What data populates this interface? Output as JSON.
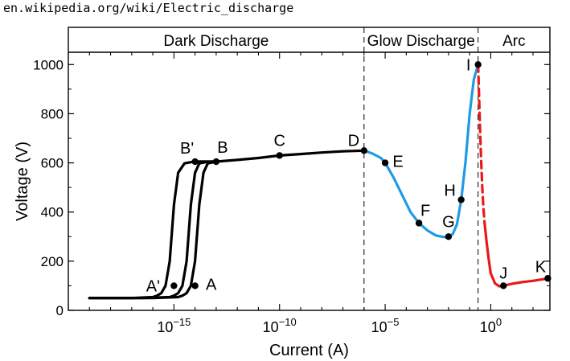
{
  "page": {
    "url": "en.wikipedia.org/wiki/Electric_discharge"
  },
  "colors": {
    "dark": "#000000",
    "glow": "#1f9be6",
    "arc": "#e8191b"
  },
  "chart_data": {
    "type": "line",
    "xscale": "log",
    "xlabel": "Current  (A)",
    "ylabel": "Voltage  (V)",
    "xlim": [
      "1e-20",
      "1e2.8"
    ],
    "ylim": [
      0,
      1050
    ],
    "x_ticks": [
      "10^-15",
      "10^-10",
      "10^-5",
      "10^0"
    ],
    "x_tick_labels": [
      {
        "base": "10",
        "exp": "−15"
      },
      {
        "base": "10",
        "exp": "−10"
      },
      {
        "base": "10",
        "exp": "−5"
      },
      {
        "base": "10",
        "exp": "0"
      }
    ],
    "y_ticks": [
      0,
      200,
      400,
      600,
      800,
      1000
    ],
    "regions": [
      {
        "label": "Dark Discharge",
        "x_range": [
          "1e-20",
          "1e-6"
        ]
      },
      {
        "label": "Glow Discharge",
        "x_range": [
          "1e-6",
          "1e-0.6"
        ]
      },
      {
        "label": "Arc",
        "x_range": [
          "1e-0.6",
          "1e2.8"
        ]
      }
    ],
    "points": [
      {
        "label": "A'",
        "x": "1e-15",
        "y": 100
      },
      {
        "label": "A",
        "x": "1e-14",
        "y": 100
      },
      {
        "label": "B'",
        "x": "1e-14",
        "y": 605
      },
      {
        "label": "B",
        "x": "1e-13",
        "y": 605
      },
      {
        "label": "C",
        "x": "1e-10",
        "y": 630
      },
      {
        "label": "D",
        "x": "1e-6",
        "y": 650
      },
      {
        "label": "E",
        "x": "1e-5",
        "y": 600
      },
      {
        "label": "F",
        "x": "1e-3.4",
        "y": 355
      },
      {
        "label": "G",
        "x": "1e-2",
        "y": 300
      },
      {
        "label": "H",
        "x": "1e-1.4",
        "y": 450
      },
      {
        "label": "I",
        "x": "1e-0.6",
        "y": 1000
      },
      {
        "label": "J",
        "x": "1e0.6",
        "y": 100
      },
      {
        "label": "K",
        "x": "1e2.7",
        "y": 130
      }
    ],
    "series": [
      {
        "type": "dark",
        "style": "solid",
        "x_exp": [
          -19,
          -17,
          -16,
          -15.8,
          -15.6,
          -15.4,
          -15.2,
          -15,
          -14.8,
          -14.5,
          -14.2,
          -14,
          -13.5,
          -13
        ],
        "y": [
          50,
          50,
          54,
          60,
          70,
          100,
          200,
          430,
          560,
          598,
          603,
          605,
          605,
          605
        ]
      },
      {
        "type": "dark",
        "style": "solid",
        "x_exp": [
          -19,
          -16.5,
          -15.2,
          -15,
          -14.8,
          -14.6,
          -14.4,
          -14.2,
          -14,
          -13.8,
          -13.5,
          -13.2,
          -13
        ],
        "y": [
          50,
          50,
          54,
          60,
          70,
          100,
          200,
          430,
          560,
          598,
          603,
          605,
          605
        ]
      },
      {
        "type": "dark",
        "style": "solid",
        "x_exp": [
          -19,
          -16,
          -14.8,
          -14.6,
          -14.4,
          -14.2,
          -14,
          -13.8,
          -13.6,
          -13.4,
          -13.1,
          -13
        ],
        "y": [
          50,
          50,
          54,
          60,
          70,
          100,
          200,
          430,
          560,
          598,
          603,
          605
        ]
      },
      {
        "type": "dark",
        "style": "solid",
        "x_exp": [
          -14,
          -13,
          -12,
          -11,
          -10,
          -9,
          -8,
          -7,
          -6
        ],
        "y": [
          605,
          605,
          612,
          620,
          630,
          636,
          642,
          647,
          650
        ]
      },
      {
        "type": "glow",
        "style": "solid",
        "x_exp": [
          -6,
          -5.6,
          -5.2,
          -5,
          -4.6,
          -4.2,
          -3.8,
          -3.4,
          -3,
          -2.6,
          -2.2,
          -2,
          -1.8,
          -1.6,
          -1.4,
          -1.2,
          -1,
          -0.8,
          -0.6
        ],
        "y": [
          650,
          638,
          620,
          600,
          540,
          470,
          400,
          355,
          325,
          305,
          298,
          300,
          310,
          350,
          450,
          600,
          800,
          940,
          1000
        ]
      },
      {
        "type": "arc",
        "style": "dashed",
        "x_exp": [
          -0.6,
          -0.55,
          -0.5,
          -0.45,
          -0.4,
          -0.35,
          -0.3
        ],
        "y": [
          1000,
          860,
          720,
          600,
          500,
          420,
          360
        ]
      },
      {
        "type": "arc",
        "style": "solid",
        "x_exp": [
          -0.3,
          -0.2,
          -0.1,
          0,
          0.2,
          0.4,
          0.6,
          1,
          1.5,
          2,
          2.5,
          2.7
        ],
        "y": [
          360,
          280,
          210,
          150,
          110,
          98,
          100,
          108,
          115,
          120,
          127,
          130
        ]
      }
    ]
  }
}
